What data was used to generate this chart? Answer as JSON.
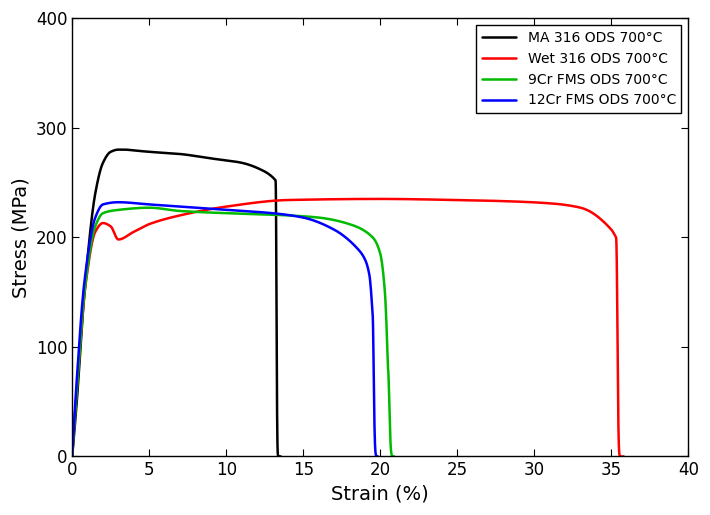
{
  "title": "",
  "xlabel": "Strain (%)",
  "ylabel": "Stress (MPa)",
  "xlim": [
    0,
    40
  ],
  "ylim": [
    0,
    400
  ],
  "xticks": [
    0,
    5,
    10,
    15,
    20,
    25,
    30,
    35,
    40
  ],
  "yticks": [
    0,
    100,
    200,
    300,
    400
  ],
  "legend_entries": [
    "MA 316 ODS 700°C",
    "Wet 316 ODS 700°C",
    "9Cr FMS ODS 700°C",
    "12Cr FMS ODS 700°C"
  ],
  "line_colors": [
    "#000000",
    "#ff0000",
    "#00bb00",
    "#0000ff"
  ],
  "line_width": 1.8,
  "background_color": "#ffffff"
}
